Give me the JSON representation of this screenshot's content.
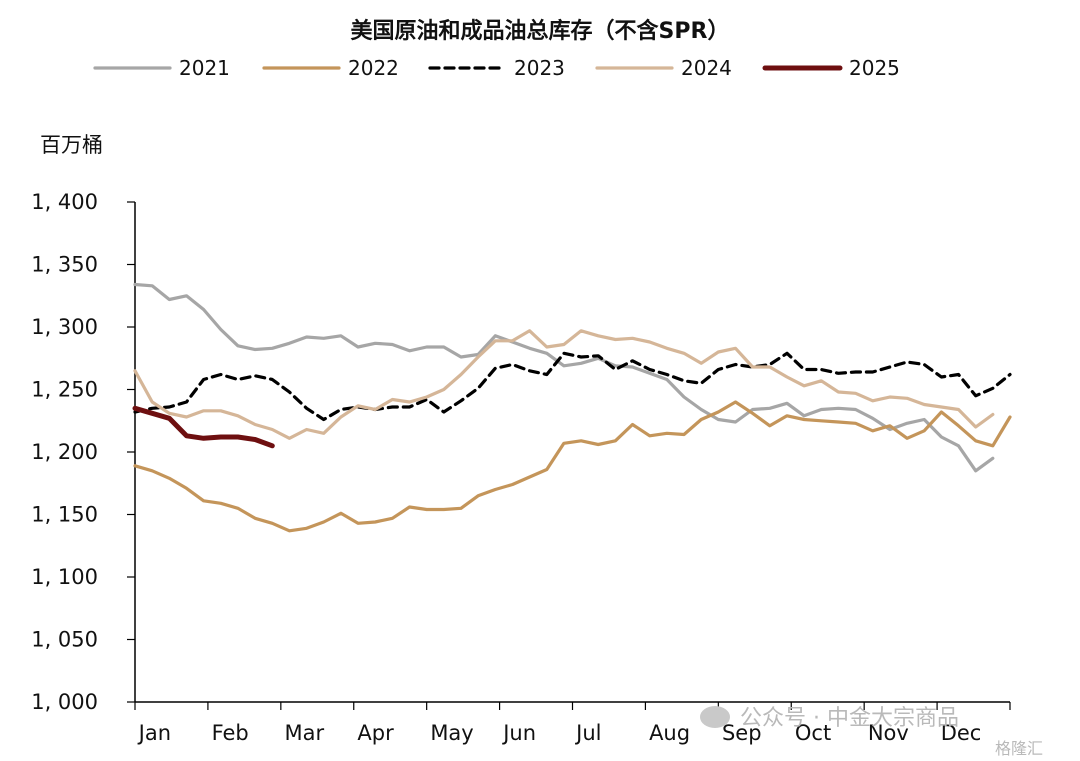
{
  "chart_data": {
    "type": "line",
    "title": "美国原油和成品油总库存（不含SPR）",
    "ylabel": "百万桶",
    "ylim": [
      1000,
      1400
    ],
    "yticks": [
      1000,
      1050,
      1100,
      1150,
      1200,
      1250,
      1300,
      1350,
      1400
    ],
    "ytick_labels": [
      "1, 000",
      "1, 050",
      "1, 100",
      "1, 150",
      "1, 200",
      "1, 250",
      "1, 300",
      "1, 350",
      "1, 400"
    ],
    "months": [
      "Jan",
      "Feb",
      "Mar",
      "Apr",
      "May",
      "Jun",
      "Jul",
      "Aug",
      "Sep",
      "Oct",
      "Nov",
      "Dec"
    ],
    "x_unit": "week_of_year",
    "grid": false,
    "legend_position": "top",
    "series": [
      {
        "name": "2021",
        "color": "#a6a6a6",
        "dash": "solid",
        "values": [
          1334,
          1333,
          1322,
          1325,
          1314,
          1298,
          1285,
          1282,
          1283,
          1287,
          1292,
          1291,
          1293,
          1284,
          1287,
          1286,
          1281,
          1284,
          1284,
          1276,
          1278,
          1293,
          1288,
          1283,
          1279,
          1269,
          1271,
          1275,
          1269,
          1268,
          1263,
          1258,
          1244,
          1234,
          1226,
          1224,
          1234,
          1235,
          1239,
          1229,
          1234,
          1235,
          1234,
          1227,
          1218,
          1223,
          1226,
          1212,
          1205,
          1185,
          1195
        ]
      },
      {
        "name": "2022",
        "color": "#c4955a",
        "dash": "solid",
        "values": [
          1189,
          1185,
          1179,
          1171,
          1161,
          1159,
          1155,
          1147,
          1143,
          1137,
          1139,
          1144,
          1151,
          1143,
          1144,
          1147,
          1156,
          1154,
          1154,
          1155,
          1165,
          1170,
          1174,
          1180,
          1186,
          1207,
          1209,
          1206,
          1209,
          1222,
          1213,
          1215,
          1214,
          1226,
          1232,
          1240,
          1231,
          1221,
          1229,
          1226,
          1225,
          1224,
          1223,
          1217,
          1221,
          1211,
          1217,
          1232,
          1221,
          1209,
          1205,
          1228
        ]
      },
      {
        "name": "2023",
        "color": "#000000",
        "dash": "dashed",
        "values": [
          1232,
          1235,
          1236,
          1240,
          1258,
          1262,
          1258,
          1261,
          1258,
          1248,
          1235,
          1226,
          1234,
          1236,
          1234,
          1236,
          1236,
          1242,
          1232,
          1241,
          1251,
          1267,
          1270,
          1265,
          1262,
          1279,
          1276,
          1277,
          1266,
          1273,
          1266,
          1262,
          1257,
          1255,
          1266,
          1270,
          1268,
          1270,
          1279,
          1266,
          1266,
          1263,
          1264,
          1264,
          1268,
          1272,
          1270,
          1260,
          1262,
          1245,
          1251,
          1262
        ]
      },
      {
        "name": "2024",
        "color": "#d5b698",
        "dash": "solid",
        "values": [
          1265,
          1240,
          1231,
          1228,
          1233,
          1233,
          1229,
          1222,
          1218,
          1211,
          1218,
          1215,
          1228,
          1237,
          1234,
          1242,
          1240,
          1244,
          1250,
          1262,
          1276,
          1289,
          1289,
          1297,
          1284,
          1286,
          1297,
          1293,
          1290,
          1291,
          1288,
          1283,
          1279,
          1271,
          1280,
          1283,
          1268,
          1268,
          1260,
          1253,
          1257,
          1248,
          1247,
          1241,
          1244,
          1243,
          1238,
          1236,
          1234,
          1220,
          1230
        ]
      },
      {
        "name": "2025",
        "color": "#6e0f10",
        "dash": "solid",
        "values": [
          1235,
          1231,
          1227,
          1213,
          1211,
          1212,
          1212,
          1210,
          1205
        ]
      }
    ]
  },
  "watermark": {
    "text": "公众号 · 中金大宗商品",
    "brand": "格隆汇"
  }
}
